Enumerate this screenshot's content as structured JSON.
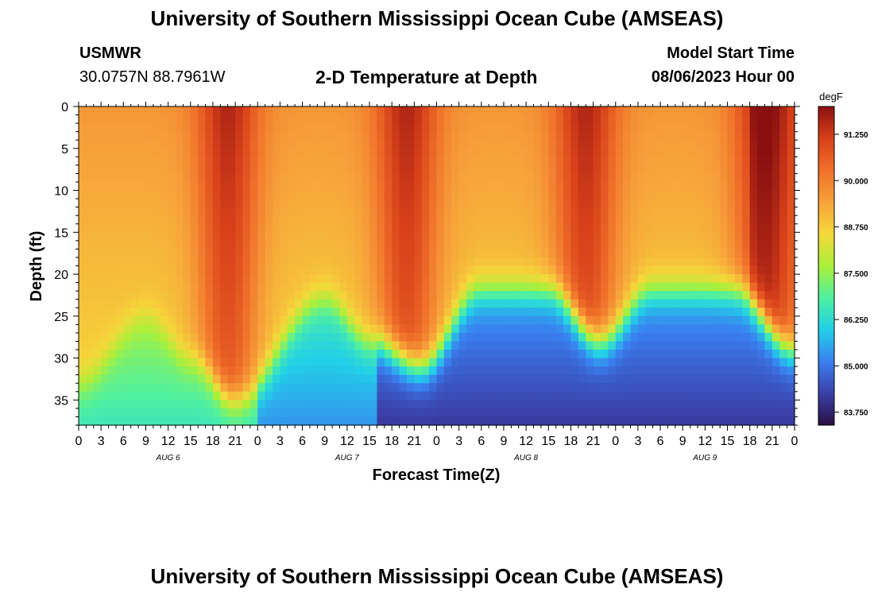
{
  "page": {
    "title_top": "University of Southern Mississippi Ocean Cube (AMSEAS)",
    "title_bottom": "University of Southern Mississippi Ocean Cube (AMSEAS)",
    "station_id": "USMWR",
    "station_coords": "30.0757N  88.7961W",
    "plot_title": "2-D Temperature at Depth",
    "model_start_label": "Model Start Time",
    "model_start_value": "08/06/2023 Hour 00"
  },
  "chart_data": {
    "type": "heatmap",
    "title": "2-D Temperature at Depth",
    "xlabel": "Forecast Time(Z)",
    "ylabel": "Depth (ft)",
    "x_range_hours": [
      0,
      96
    ],
    "y_range_ft": [
      0,
      38
    ],
    "x_tick_labels": [
      "0",
      "3",
      "6",
      "9",
      "12",
      "15",
      "18",
      "21",
      "0",
      "3",
      "6",
      "9",
      "12",
      "15",
      "18",
      "21",
      "0",
      "3",
      "6",
      "9",
      "12",
      "15",
      "18",
      "21",
      "0",
      "3",
      "6",
      "9",
      "12",
      "15",
      "18",
      "21",
      "0"
    ],
    "y_ticks": [
      0,
      5,
      10,
      15,
      20,
      25,
      30,
      35
    ],
    "day_labels": [
      {
        "hour": 12,
        "label": "AUG 6"
      },
      {
        "hour": 36,
        "label": "AUG 7"
      },
      {
        "hour": 60,
        "label": "AUG 8"
      },
      {
        "hour": 84,
        "label": "AUG 9"
      }
    ],
    "colorbar": {
      "units": "degF",
      "min": 83.4,
      "max": 92.0,
      "ticks": [
        "91.250",
        "90.000",
        "88.750",
        "87.500",
        "86.250",
        "85.000",
        "83.750"
      ],
      "stops": [
        "#2a1042",
        "#3b3fa8",
        "#3a7ff0",
        "#22d0e8",
        "#4ff0a0",
        "#aaf03a",
        "#f5d83a",
        "#f7a23a",
        "#f0702a",
        "#d8401a",
        "#8a1010"
      ]
    },
    "thermocline_depth_ft_by_hour": [
      {
        "hour": 0,
        "depth": 33
      },
      {
        "hour": 9,
        "depth": 25
      },
      {
        "hour": 15,
        "depth": 30
      },
      {
        "hour": 21,
        "depth": 35
      },
      {
        "hour": 33,
        "depth": 23
      },
      {
        "hour": 39,
        "depth": 28
      },
      {
        "hour": 46,
        "depth": 31
      },
      {
        "hour": 54,
        "depth": 22
      },
      {
        "hour": 63,
        "depth": 22
      },
      {
        "hour": 70,
        "depth": 28
      },
      {
        "hour": 77,
        "depth": 22
      },
      {
        "hour": 88,
        "depth": 22
      },
      {
        "hour": 96,
        "depth": 29
      }
    ],
    "surface_maxima_hours": [
      20,
      44,
      68,
      92
    ]
  }
}
